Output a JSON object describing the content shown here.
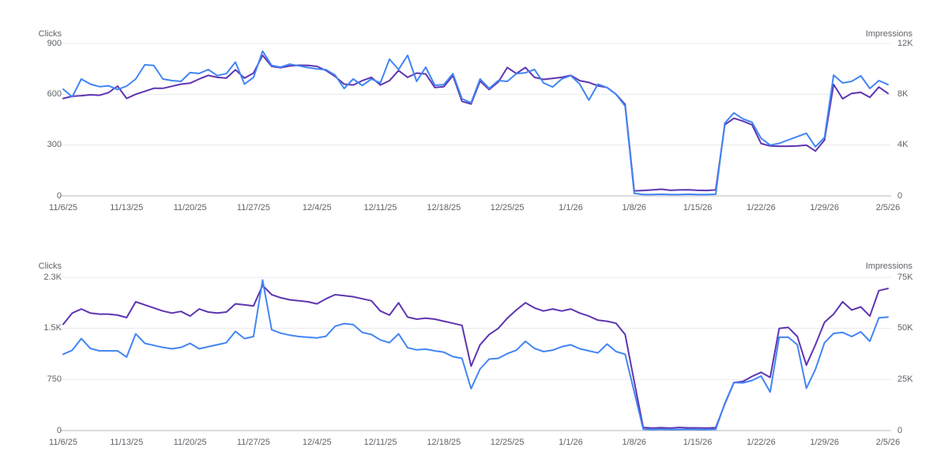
{
  "colors": {
    "clicks_line": "#4285f4",
    "impressions_line": "#5e35b1",
    "gridline": "#e9eaeb",
    "axis_line": "#b7babe",
    "label_text": "#5f6368",
    "background": "#ffffff"
  },
  "chart_data": [
    {
      "type": "line",
      "title": "",
      "grid": true,
      "legend": "none",
      "x_range": {
        "start": "11/6/25",
        "end": "2/5/26",
        "frequency": "daily",
        "points": 92
      },
      "x_tick_labels": [
        "11/6/25",
        "11/13/25",
        "11/20/25",
        "11/27/25",
        "12/4/25",
        "12/11/25",
        "12/18/25",
        "12/25/25",
        "1/1/26",
        "1/8/26",
        "1/15/26",
        "1/22/26",
        "1/29/26",
        "2/5/26"
      ],
      "left_axis": {
        "title": "Clicks",
        "tick_labels": [
          "900",
          "600",
          "300",
          "0"
        ],
        "min": 0,
        "max": 900
      },
      "right_axis": {
        "title": "Impressions",
        "tick_labels": [
          "12K",
          "8K",
          "4K",
          "0"
        ],
        "min": 0,
        "max": 12000
      },
      "series": [
        {
          "name": "Impressions",
          "axis": "right",
          "color": "#5e35b1",
          "values": [
            7670,
            7840,
            7890,
            7960,
            7920,
            8130,
            8640,
            7670,
            8000,
            8230,
            8470,
            8470,
            8630,
            8800,
            8870,
            9200,
            9490,
            9330,
            9270,
            9930,
            9270,
            9670,
            11070,
            10200,
            10090,
            10230,
            10290,
            10270,
            10200,
            9870,
            9400,
            8800,
            8730,
            9070,
            9330,
            8730,
            9070,
            9870,
            9330,
            9670,
            9600,
            8530,
            8600,
            9470,
            7440,
            7230,
            9040,
            8370,
            8960,
            10110,
            9630,
            10110,
            9330,
            9170,
            9250,
            9330,
            9490,
            9070,
            8930,
            8670,
            8530,
            8000,
            7200,
            400,
            430,
            470,
            530,
            440,
            470,
            480,
            440,
            430,
            470,
            5600,
            6110,
            5890,
            5600,
            4130,
            3930,
            3910,
            3910,
            3930,
            4000,
            3530,
            4400,
            8770,
            7650,
            8070,
            8150,
            7760,
            8570,
            8070
          ]
        },
        {
          "name": "Clicks",
          "axis": "left",
          "color": "#4285f4",
          "values": [
            630,
            585,
            690,
            660,
            645,
            650,
            628,
            648,
            690,
            774,
            770,
            690,
            681,
            676,
            728,
            723,
            746,
            710,
            722,
            790,
            660,
            700,
            855,
            770,
            760,
            778,
            768,
            758,
            750,
            745,
            713,
            634,
            690,
            652,
            690,
            667,
            807,
            746,
            830,
            676,
            760,
            653,
            657,
            722,
            573,
            550,
            690,
            634,
            681,
            676,
            722,
            727,
            746,
            667,
            643,
            690,
            710,
            660,
            565,
            660,
            640,
            600,
            530,
            15,
            8,
            8,
            10,
            8,
            8,
            10,
            8,
            8,
            10,
            430,
            490,
            455,
            435,
            340,
            300,
            310,
            330,
            350,
            370,
            290,
            345,
            713,
            667,
            676,
            709,
            634,
            681,
            657
          ]
        }
      ]
    },
    {
      "type": "line",
      "title": "",
      "grid": true,
      "legend": "none",
      "x_range": {
        "start": "11/6/25",
        "end": "2/5/26",
        "frequency": "daily",
        "points": 92
      },
      "x_tick_labels": [
        "11/6/25",
        "11/13/25",
        "11/20/25",
        "11/27/25",
        "12/4/25",
        "12/11/25",
        "12/18/25",
        "12/25/25",
        "1/1/26",
        "1/8/26",
        "1/15/26",
        "1/22/26",
        "1/29/26",
        "2/5/26"
      ],
      "left_axis": {
        "title": "Clicks",
        "tick_labels": [
          "2.3K",
          "1.5K",
          "750",
          "0"
        ],
        "min": 0,
        "max": 2250
      },
      "right_axis": {
        "title": "Impressions",
        "tick_labels": [
          "75K",
          "50K",
          "25K",
          "0"
        ],
        "min": 0,
        "max": 75000
      },
      "series": [
        {
          "name": "Impressions",
          "axis": "right",
          "color": "#5e35b1",
          "values": [
            52000,
            57500,
            59500,
            57500,
            57000,
            57000,
            56500,
            55300,
            63000,
            61500,
            60000,
            58500,
            57500,
            58300,
            56000,
            59500,
            58000,
            57500,
            58000,
            62000,
            61500,
            61000,
            71000,
            66500,
            65000,
            64000,
            63500,
            63000,
            62000,
            64500,
            66500,
            66000,
            65500,
            64500,
            63500,
            58500,
            56500,
            62500,
            55500,
            54500,
            55000,
            54500,
            53500,
            52500,
            51500,
            31500,
            42000,
            47000,
            50000,
            55000,
            59000,
            62500,
            60000,
            58500,
            59500,
            58500,
            59500,
            57500,
            56000,
            54000,
            53500,
            52500,
            47000,
            24000,
            1500,
            1200,
            1400,
            1200,
            1500,
            1300,
            1300,
            1200,
            1400,
            13000,
            23500,
            24000,
            26500,
            28500,
            26000,
            50000,
            50500,
            46000,
            32000,
            42000,
            53000,
            57000,
            63000,
            59000,
            60500,
            56000,
            68500,
            69500
          ]
        },
        {
          "name": "Clicks",
          "axis": "left",
          "color": "#4285f4",
          "values": [
            1120,
            1180,
            1350,
            1205,
            1170,
            1170,
            1170,
            1080,
            1420,
            1280,
            1250,
            1220,
            1200,
            1220,
            1280,
            1200,
            1230,
            1260,
            1290,
            1455,
            1350,
            1380,
            2210,
            1480,
            1430,
            1400,
            1380,
            1370,
            1360,
            1385,
            1530,
            1570,
            1555,
            1440,
            1410,
            1330,
            1290,
            1420,
            1215,
            1185,
            1195,
            1170,
            1150,
            1085,
            1060,
            615,
            905,
            1050,
            1060,
            1130,
            1180,
            1310,
            1205,
            1160,
            1180,
            1230,
            1260,
            1200,
            1170,
            1140,
            1270,
            1160,
            1120,
            570,
            20,
            15,
            18,
            15,
            15,
            18,
            15,
            15,
            18,
            400,
            704,
            700,
            735,
            800,
            565,
            1370,
            1370,
            1260,
            620,
            900,
            1290,
            1425,
            1440,
            1380,
            1450,
            1310,
            1655,
            1665
          ]
        }
      ]
    }
  ]
}
